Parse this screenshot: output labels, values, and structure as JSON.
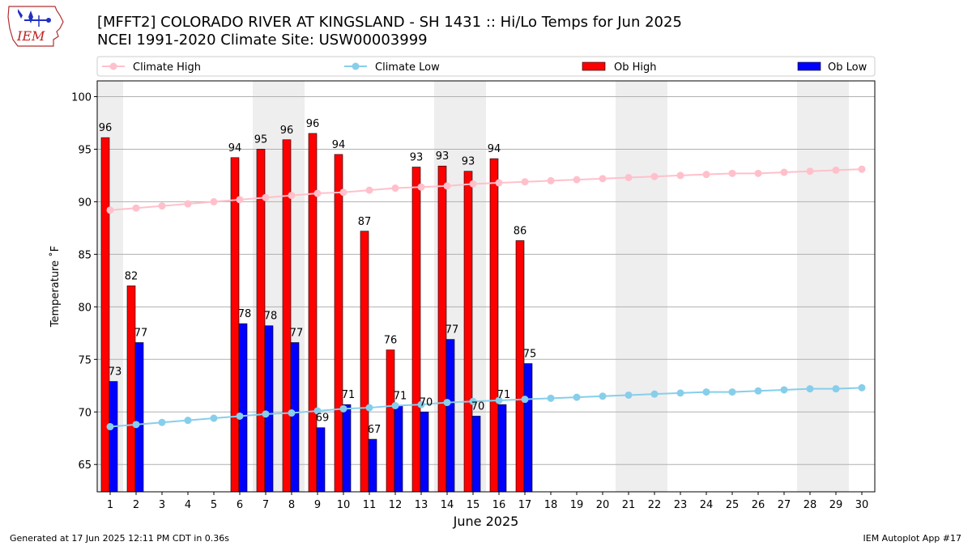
{
  "logo_text": "IEM",
  "title_line1": "[MFFT2] COLORADO RIVER  AT KINGSLAND - SH 1431 :: Hi/Lo Temps for Jun 2025",
  "title_line2": "NCEI 1991-2020 Climate Site: USW00003999",
  "footer_left": "Generated at 17 Jun 2025 12:11 PM CDT in 0.36s",
  "footer_right": "IEM Autoplot App #17",
  "colors": {
    "ob_high": "#ff0000",
    "ob_low": "#0000ff",
    "climate_high": "#ffc0cb",
    "climate_low": "#87ceeb",
    "weekend_shade": "#eeeeee",
    "grid": "#b0b0b0"
  },
  "chart_data": {
    "type": "bar",
    "xlabel": "June 2025",
    "ylabel": "Temperature ˚F",
    "ylim": [
      62.4,
      101.5
    ],
    "y_ticks": [
      65,
      70,
      75,
      80,
      85,
      90,
      95,
      100
    ],
    "x": [
      1,
      2,
      3,
      4,
      5,
      6,
      7,
      8,
      9,
      10,
      11,
      12,
      13,
      14,
      15,
      16,
      17,
      18,
      19,
      20,
      21,
      22,
      23,
      24,
      25,
      26,
      27,
      28,
      29,
      30
    ],
    "grid": true,
    "legend_position": "top",
    "shaded_days": [
      1,
      7,
      8,
      14,
      15,
      21,
      22,
      28,
      29
    ],
    "legend": [
      {
        "label": "Climate High",
        "kind": "line",
        "color_key": "climate_high"
      },
      {
        "label": "Climate Low",
        "kind": "line",
        "color_key": "climate_low"
      },
      {
        "label": "Ob High",
        "kind": "bar",
        "color_key": "ob_high"
      },
      {
        "label": "Ob Low",
        "kind": "bar",
        "color_key": "ob_low"
      }
    ],
    "series": [
      {
        "name": "Ob High",
        "kind": "bar",
        "values": [
          96.1,
          82,
          null,
          null,
          null,
          94.2,
          95.0,
          95.9,
          96.5,
          94.5,
          87.2,
          75.9,
          93.3,
          93.4,
          92.9,
          94.1,
          86.3,
          null,
          null,
          null,
          null,
          null,
          null,
          null,
          null,
          null,
          null,
          null,
          null,
          null
        ],
        "labels": [
          "96",
          "82",
          "",
          "",
          "",
          "94",
          "95",
          "96",
          "96",
          "94",
          "87",
          "76",
          "93",
          "93",
          "93",
          "94",
          "86",
          "",
          "",
          "",
          "",
          "",
          "",
          "",
          "",
          "",
          "",
          "",
          "",
          ""
        ]
      },
      {
        "name": "Ob Low",
        "kind": "bar",
        "values": [
          72.9,
          76.6,
          null,
          null,
          null,
          78.4,
          78.2,
          76.6,
          68.5,
          70.7,
          67.4,
          70.6,
          70.0,
          76.9,
          69.6,
          70.7,
          74.6,
          null,
          null,
          null,
          null,
          null,
          null,
          null,
          null,
          null,
          null,
          null,
          null,
          null
        ],
        "labels": [
          "73",
          "77",
          "",
          "",
          "",
          "78",
          "78",
          "77",
          "69",
          "71",
          "67",
          "71",
          "70",
          "77",
          "70",
          "71",
          "75",
          "",
          "",
          "",
          "",
          "",
          "",
          "",
          "",
          "",
          "",
          "",
          "",
          ""
        ]
      },
      {
        "name": "Climate High",
        "kind": "line",
        "values": [
          89.2,
          89.4,
          89.6,
          89.8,
          90.0,
          90.2,
          90.4,
          90.6,
          90.8,
          90.9,
          91.1,
          91.3,
          91.4,
          91.5,
          91.7,
          91.8,
          91.9,
          92.0,
          92.1,
          92.2,
          92.3,
          92.4,
          92.5,
          92.6,
          92.7,
          92.7,
          92.8,
          92.9,
          93.0,
          93.1
        ]
      },
      {
        "name": "Climate Low",
        "kind": "line",
        "values": [
          68.6,
          68.8,
          69.0,
          69.2,
          69.4,
          69.6,
          69.8,
          69.9,
          70.1,
          70.3,
          70.4,
          70.6,
          70.7,
          70.9,
          71.0,
          71.1,
          71.2,
          71.3,
          71.4,
          71.5,
          71.6,
          71.7,
          71.8,
          71.9,
          71.9,
          72.0,
          72.1,
          72.2,
          72.2,
          72.3
        ]
      }
    ]
  }
}
